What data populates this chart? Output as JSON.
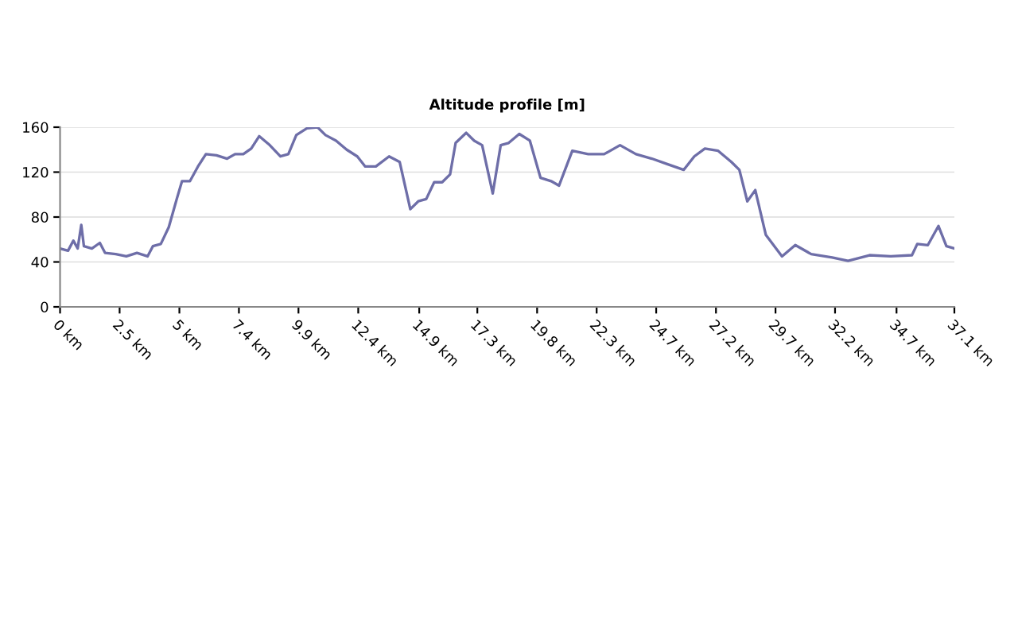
{
  "chart_data": {
    "type": "line",
    "title": "Altitude profile [m]",
    "series": [
      {
        "color": "#6e6ea8",
        "x": [
          0,
          0.33,
          0.55,
          0.73,
          0.88,
          0.99,
          1.32,
          1.65,
          1.87,
          2.31,
          2.75,
          3.19,
          3.63,
          3.85,
          4.18,
          4.51,
          4.84,
          5.06,
          5.39,
          5.72,
          6.05,
          6.49,
          6.93,
          7.26,
          7.6,
          7.93,
          8.26,
          8.7,
          9.14,
          9.47,
          9.8,
          10.24,
          10.68,
          11.01,
          11.45,
          11.89,
          12.33,
          12.66,
          13.1,
          13.65,
          14.09,
          14.53,
          14.86,
          15.19,
          15.52,
          15.85,
          16.18,
          16.41,
          16.85,
          17.18,
          17.51,
          17.95,
          18.28,
          18.61,
          19.05,
          19.49,
          19.93,
          20.37,
          20.7,
          21.25,
          21.91,
          22.57,
          23.23,
          23.89,
          24.55,
          25.21,
          25.87,
          26.31,
          26.75,
          27.3,
          27.85,
          28.18,
          28.51,
          28.84,
          29.28,
          29.95,
          30.5,
          31.16,
          32.03,
          32.69,
          33.58,
          34.46,
          35.34,
          35.56,
          36.0,
          36.44,
          36.77,
          37.1
        ],
        "values": [
          52,
          50,
          59,
          52,
          73,
          54,
          52,
          57,
          48,
          47,
          45,
          48,
          45,
          54,
          56,
          71,
          96,
          112,
          112,
          125,
          136,
          135,
          132,
          136,
          136,
          141,
          152,
          144,
          134,
          136,
          153,
          159,
          160,
          153,
          148,
          140,
          134,
          125,
          125,
          134,
          129,
          87,
          94,
          96,
          111,
          111,
          118,
          146,
          155,
          148,
          144,
          101,
          144,
          146,
          154,
          148,
          115,
          112,
          108,
          139,
          136,
          136,
          144,
          136,
          132,
          127,
          122,
          134,
          141,
          139,
          129,
          122,
          94,
          104,
          64,
          45,
          55,
          47,
          44,
          41,
          46,
          45,
          46,
          56,
          55,
          72,
          54,
          52
        ]
      }
    ],
    "xlim": [
      0,
      37.1
    ],
    "xticks": [
      {
        "value": 0,
        "label": "0 km"
      },
      {
        "value": 2.47,
        "label": "2.5 km"
      },
      {
        "value": 4.95,
        "label": "5 km"
      },
      {
        "value": 7.42,
        "label": "7.4 km"
      },
      {
        "value": 9.89,
        "label": "9.9 km"
      },
      {
        "value": 12.37,
        "label": "12.4 km"
      },
      {
        "value": 14.9,
        "label": "14.9 km"
      },
      {
        "value": 17.31,
        "label": "17.3 km"
      },
      {
        "value": 19.79,
        "label": "19.8 km"
      },
      {
        "value": 22.26,
        "label": "22.3 km"
      },
      {
        "value": 24.73,
        "label": "24.7 km"
      },
      {
        "value": 27.21,
        "label": "27.2 km"
      },
      {
        "value": 29.68,
        "label": "29.7 km"
      },
      {
        "value": 32.15,
        "label": "32.2 km"
      },
      {
        "value": 34.7,
        "label": "34.7 km"
      },
      {
        "value": 37.1,
        "label": "37.1 km"
      }
    ],
    "ylim": [
      0,
      160
    ],
    "yticks": [
      0,
      40,
      80,
      120,
      160
    ],
    "grid": "y"
  }
}
